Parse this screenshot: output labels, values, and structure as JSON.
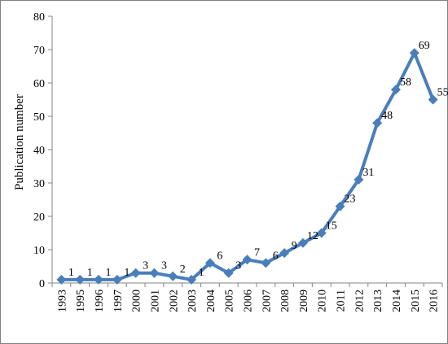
{
  "chart_data": {
    "type": "line",
    "title": "",
    "xlabel": "",
    "ylabel": "Publication number",
    "ylim": [
      0,
      80
    ],
    "y_ticks": [
      "0",
      "10",
      "20",
      "30",
      "40",
      "50",
      "60",
      "70",
      "80"
    ],
    "grid": false,
    "legend": "none",
    "categories": [
      "1993",
      "1995",
      "1996",
      "1997",
      "2000",
      "2001",
      "2002",
      "2003",
      "2004",
      "2005",
      "2006",
      "2007",
      "2008",
      "2009",
      "2010",
      "2011",
      "2012",
      "2013",
      "2014",
      "2015",
      "2016"
    ],
    "series": [
      {
        "color": "#4a7ebb",
        "values": [
          1,
          1,
          1,
          1,
          3,
          3,
          2,
          1,
          6,
          3,
          7,
          6,
          9,
          12,
          15,
          23,
          31,
          48,
          58,
          69,
          55
        ],
        "data_labels": [
          "1",
          "1",
          "1",
          "1",
          "3",
          "3",
          "2",
          "1",
          "6",
          "3",
          "7",
          "6",
          "9",
          "12",
          "15",
          "23",
          "31",
          "48",
          "58",
          "69",
          "55"
        ]
      }
    ]
  }
}
